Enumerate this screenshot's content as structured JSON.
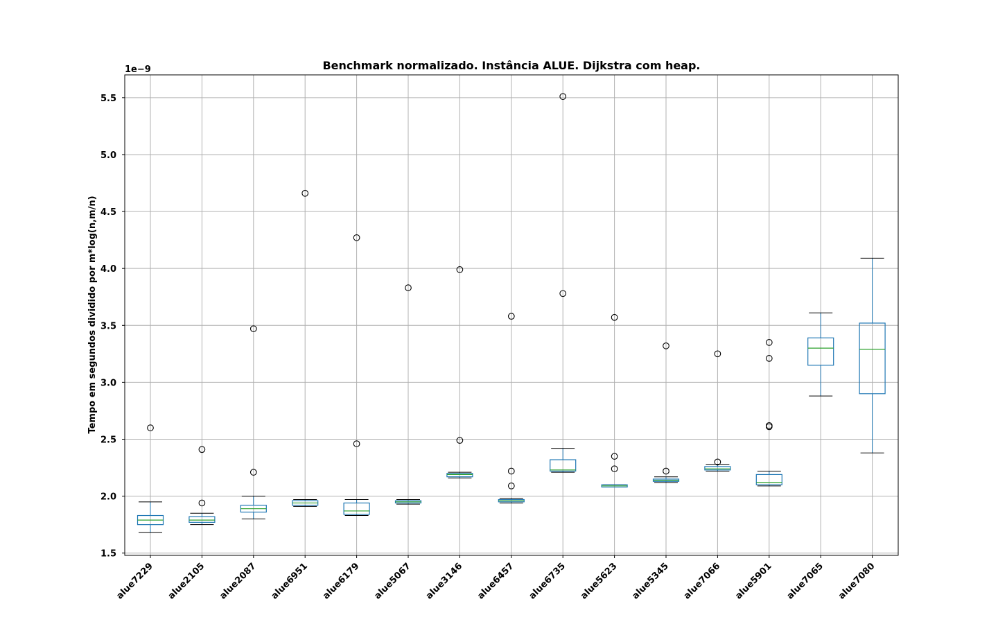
{
  "chart_data": {
    "type": "box",
    "title": "Benchmark normalizado. Instância ALUE. Dijkstra com heap.",
    "xlabel": "",
    "ylabel": "Tempo em segundos dividido por m*log(n,m/n)",
    "y_offset_label": "1e−9",
    "ylim": [
      1.48,
      5.7
    ],
    "yticks": [
      1.5,
      2.0,
      2.5,
      3.0,
      3.5,
      4.0,
      4.5,
      5.0,
      5.5
    ],
    "ytick_labels": [
      "1.5",
      "2.0",
      "2.5",
      "3.0",
      "3.5",
      "4.0",
      "4.5",
      "5.0",
      "5.5"
    ],
    "grid": true,
    "categories": [
      "alue7229",
      "alue2105",
      "alue2087",
      "alue6951",
      "alue6179",
      "alue5067",
      "alue3146",
      "alue6457",
      "alue6735",
      "alue5623",
      "alue5345",
      "alue7066",
      "alue5901",
      "alue7065",
      "alue7080"
    ],
    "boxes": [
      {
        "whisker_low": 1.68,
        "q1": 1.75,
        "median": 1.79,
        "q3": 1.83,
        "whisker_high": 1.95,
        "outliers": [
          2.6
        ]
      },
      {
        "whisker_low": 1.75,
        "q1": 1.77,
        "median": 1.79,
        "q3": 1.82,
        "whisker_high": 1.85,
        "outliers": [
          1.94,
          2.41
        ]
      },
      {
        "whisker_low": 1.8,
        "q1": 1.86,
        "median": 1.89,
        "q3": 1.92,
        "whisker_high": 2.0,
        "outliers": [
          2.21,
          3.47
        ]
      },
      {
        "whisker_low": 1.91,
        "q1": 1.92,
        "median": 1.94,
        "q3": 1.96,
        "whisker_high": 1.97,
        "outliers": [
          4.66
        ]
      },
      {
        "whisker_low": 1.83,
        "q1": 1.84,
        "median": 1.87,
        "q3": 1.94,
        "whisker_high": 1.97,
        "outliers": [
          2.46,
          4.27
        ]
      },
      {
        "whisker_low": 1.93,
        "q1": 1.94,
        "median": 1.95,
        "q3": 1.96,
        "whisker_high": 1.97,
        "outliers": [
          3.83
        ]
      },
      {
        "whisker_low": 2.16,
        "q1": 2.17,
        "median": 2.19,
        "q3": 2.2,
        "whisker_high": 2.21,
        "outliers": [
          2.49,
          3.99
        ]
      },
      {
        "whisker_low": 1.94,
        "q1": 1.95,
        "median": 1.96,
        "q3": 1.97,
        "whisker_high": 1.98,
        "outliers": [
          2.09,
          2.22,
          3.58
        ]
      },
      {
        "whisker_low": 2.21,
        "q1": 2.22,
        "median": 2.23,
        "q3": 2.32,
        "whisker_high": 2.42,
        "outliers": [
          3.78,
          5.51
        ]
      },
      {
        "whisker_low": 2.08,
        "q1": 2.08,
        "median": 2.09,
        "q3": 2.1,
        "whisker_high": 2.1,
        "outliers": [
          2.24,
          2.35,
          3.57
        ]
      },
      {
        "whisker_low": 2.12,
        "q1": 2.13,
        "median": 2.14,
        "q3": 2.15,
        "whisker_high": 2.17,
        "outliers": [
          2.22,
          3.32
        ]
      },
      {
        "whisker_low": 2.22,
        "q1": 2.23,
        "median": 2.24,
        "q3": 2.26,
        "whisker_high": 2.28,
        "outliers": [
          2.3,
          3.25
        ]
      },
      {
        "whisker_low": 2.09,
        "q1": 2.1,
        "median": 2.12,
        "q3": 2.19,
        "whisker_high": 2.22,
        "outliers": [
          2.61,
          2.62,
          3.21,
          3.35
        ]
      },
      {
        "whisker_low": 2.88,
        "q1": 3.15,
        "median": 3.3,
        "q3": 3.39,
        "whisker_high": 3.61,
        "outliers": []
      },
      {
        "whisker_low": 2.38,
        "q1": 2.9,
        "median": 3.29,
        "q3": 3.52,
        "whisker_high": 4.09,
        "outliers": []
      }
    ],
    "colors": {
      "box": "#1f77b4",
      "median": "#2ca02c",
      "whisker_cap": "#000000",
      "outlier_edge": "#000000",
      "grid": "#b0b0b0",
      "axis": "#000000"
    }
  }
}
